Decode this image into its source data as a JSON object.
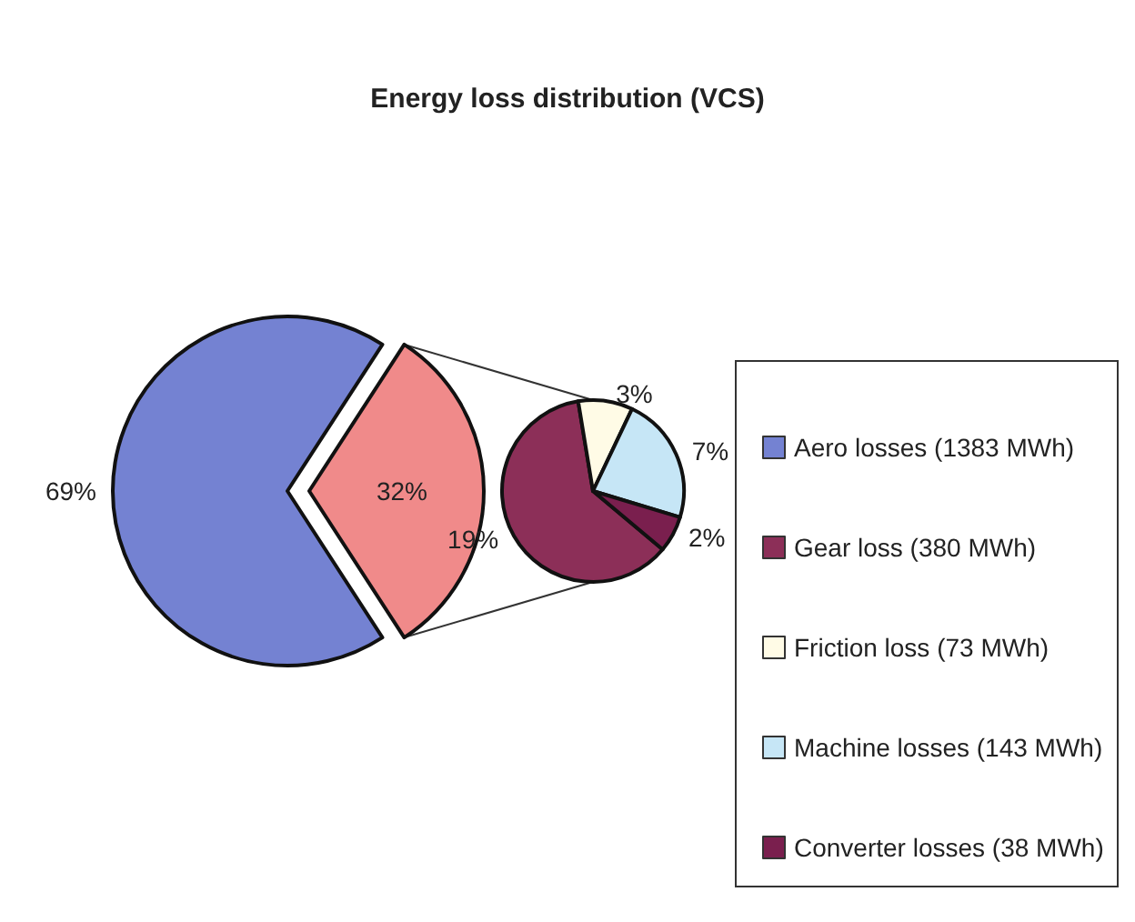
{
  "chart_data": [
    {
      "type": "pie",
      "title": "Energy loss distribution (VCS)",
      "categories": [
        "Aero losses (1383 MWh)",
        null
      ],
      "values": [
        69,
        32
      ],
      "value_labels": [
        "69%",
        "32%"
      ],
      "colors": [
        "#7482d2",
        "#f08a8a"
      ],
      "legend": "right"
    },
    {
      "type": "pie",
      "categories": [
        "Gear loss (380 MWh)",
        "Friction loss (73 MWh)",
        "Machine losses (143 MWh)",
        "Converter losses (38 MWh)"
      ],
      "values": [
        19,
        3,
        7,
        2
      ],
      "value_labels": [
        "19%",
        "3%",
        "7%",
        "2%"
      ],
      "colors": [
        "#8c2f58",
        "#fffbe6",
        "#c6e6f6",
        "#7a1f4e"
      ],
      "legend": "right"
    }
  ]
}
